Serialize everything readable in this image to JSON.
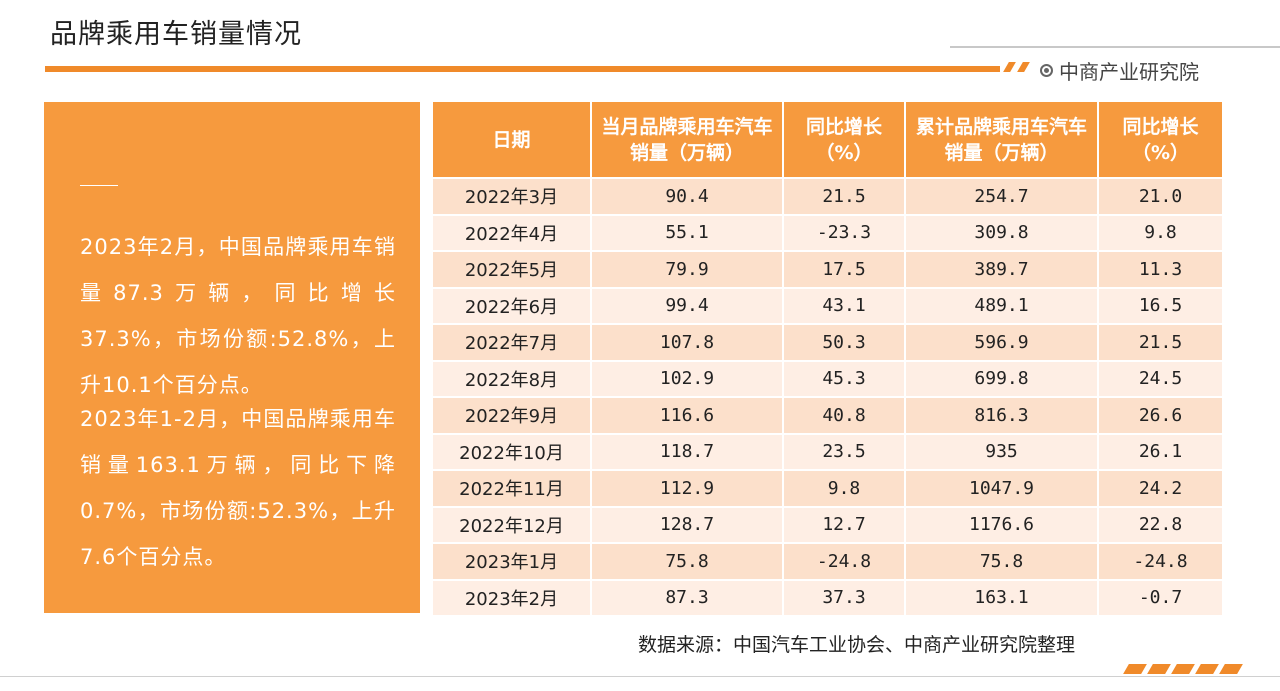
{
  "page": {
    "title": "品牌乘用车销量情况",
    "brand": "中商产业研究院",
    "accent_color": "#f08a2a",
    "panel_color": "#f69a3e"
  },
  "summary": {
    "paragraph1": "2023年2月，中国品牌乘用车销量87.3万辆，同比增长37.3%，市场份额:52.8%，上升10.1个百分点。",
    "paragraph2": "2023年1-2月，中国品牌乘用车销量163.1万辆，同比下降0.7%，市场份额:52.3%，上升7.6个百分点。"
  },
  "table": {
    "headers": [
      "日期",
      "当月品牌乘用车汽车销量（万辆）",
      "同比增长（%）",
      "累计品牌乘用车汽车销量（万辆）",
      "同比增长（%）"
    ],
    "rows": [
      [
        "2022年3月",
        "90.4",
        "21.5",
        "254.7",
        "21.0"
      ],
      [
        "2022年4月",
        "55.1",
        "-23.3",
        "309.8",
        "9.8"
      ],
      [
        "2022年5月",
        "79.9",
        "17.5",
        "389.7",
        "11.3"
      ],
      [
        "2022年6月",
        "99.4",
        "43.1",
        "489.1",
        "16.5"
      ],
      [
        "2022年7月",
        "107.8",
        "50.3",
        "596.9",
        "21.5"
      ],
      [
        "2022年8月",
        "102.9",
        "45.3",
        "699.8",
        "24.5"
      ],
      [
        "2022年9月",
        "116.6",
        "40.8",
        "816.3",
        "26.6"
      ],
      [
        "2022年10月",
        "118.7",
        "23.5",
        "935",
        "26.1"
      ],
      [
        "2022年11月",
        "112.9",
        "9.8",
        "1047.9",
        "24.2"
      ],
      [
        "2022年12月",
        "128.7",
        "12.7",
        "1176.6",
        "22.8"
      ],
      [
        "2023年1月",
        "75.8",
        "-24.8",
        "75.8",
        "-24.8"
      ],
      [
        "2023年2月",
        "87.3",
        "37.3",
        "163.1",
        "-0.7"
      ]
    ]
  },
  "source": "数据来源：中国汽车工业协会、中商产业研究院整理"
}
